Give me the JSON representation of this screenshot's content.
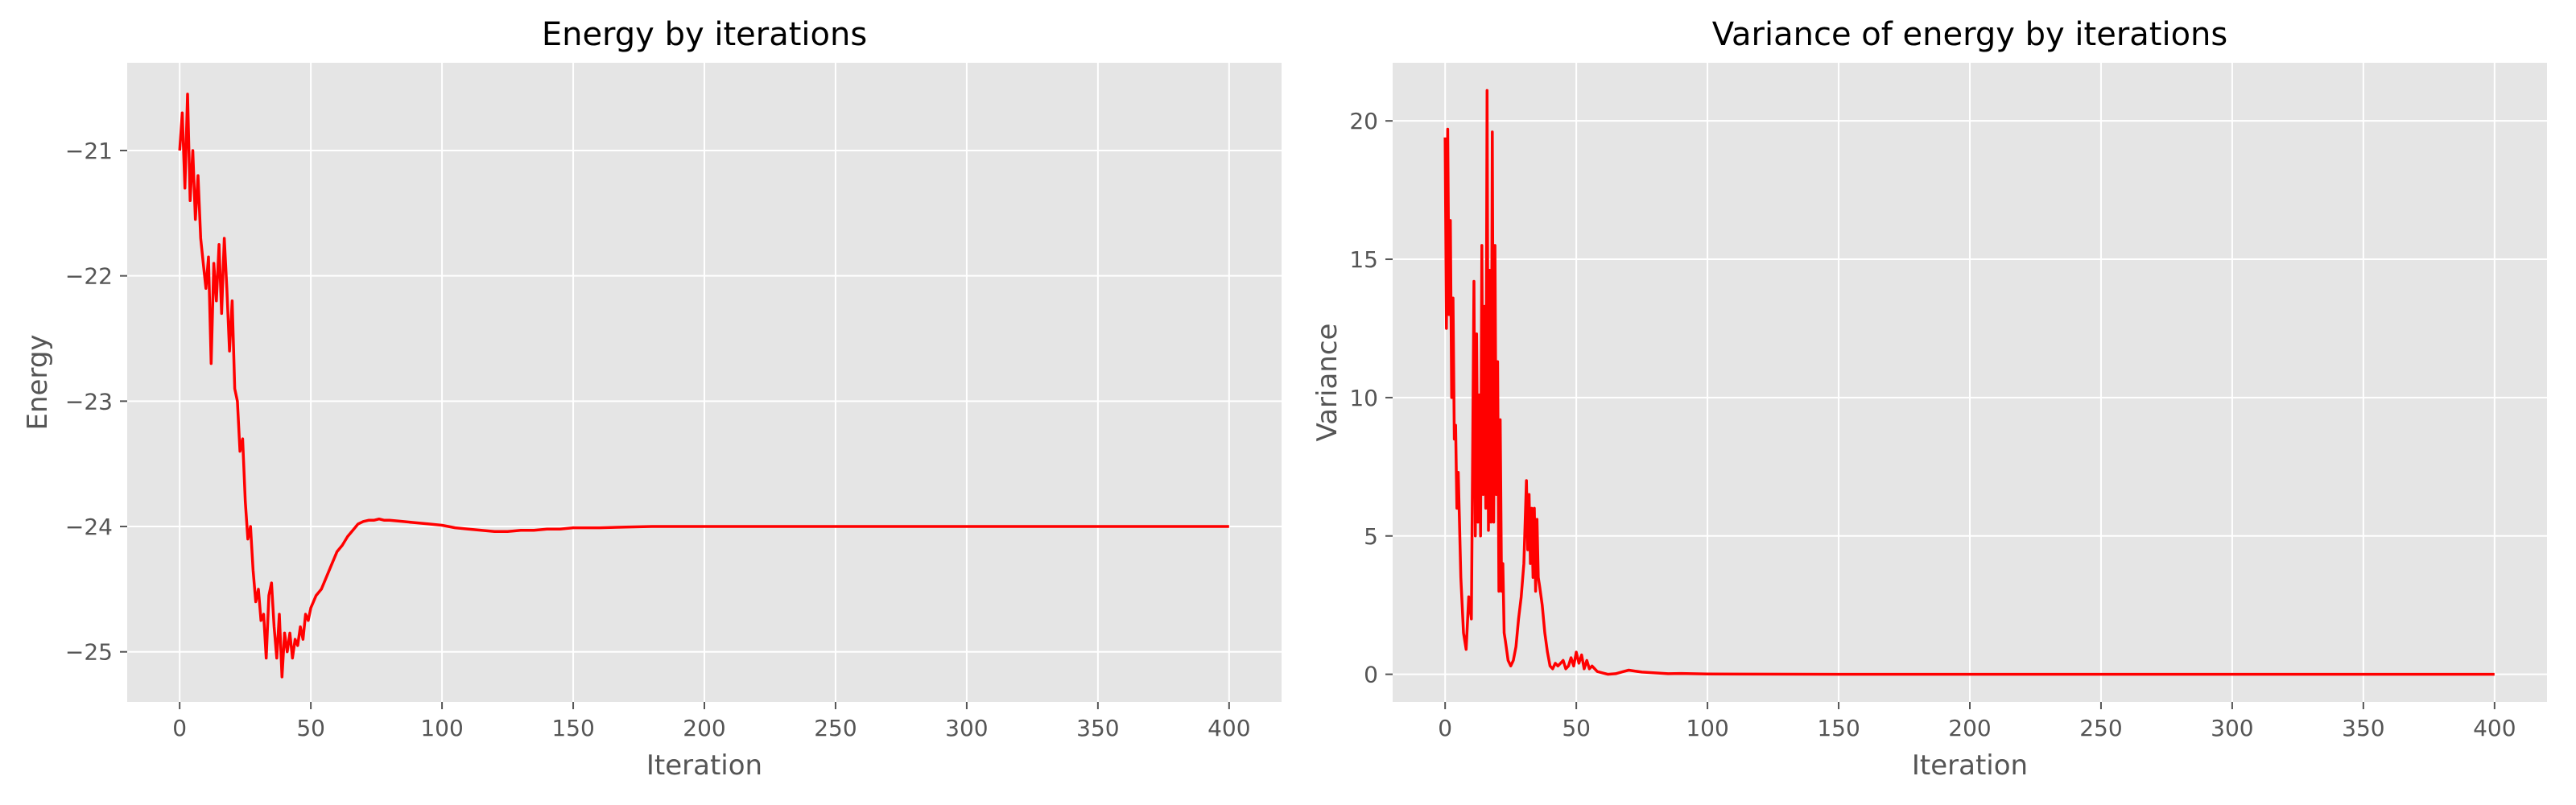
{
  "chart_data": [
    {
      "type": "line",
      "title": "Energy by iterations",
      "xlabel": "Iteration",
      "ylabel": "Energy",
      "xlim": [
        -20,
        420
      ],
      "ylim": [
        -25.4,
        -20.3
      ],
      "xticks": [
        0,
        50,
        100,
        150,
        200,
        250,
        300,
        350,
        400
      ],
      "xtick_labels": [
        "0",
        "50",
        "100",
        "150",
        "200",
        "250",
        "300",
        "350",
        "400"
      ],
      "yticks": [
        -25,
        -24,
        -23,
        -22,
        -21
      ],
      "ytick_labels": [
        "−25",
        "−24",
        "−23",
        "−22",
        "−21"
      ],
      "grid": true,
      "line_color": "#ff0000",
      "background_color": "#e5e5e5",
      "series": [
        {
          "x": [
            0,
            1,
            2,
            3,
            4,
            5,
            6,
            7,
            8,
            9,
            10,
            11,
            12,
            13,
            14,
            15,
            16,
            17,
            18,
            19,
            20,
            21,
            22,
            23,
            24,
            25,
            26,
            27,
            28,
            29,
            30,
            31,
            32,
            33,
            34,
            35,
            36,
            37,
            38,
            39,
            40,
            41,
            42,
            43,
            44,
            45,
            46,
            47,
            48,
            49,
            50,
            52,
            54,
            56,
            58,
            60,
            62,
            64,
            66,
            68,
            70,
            72,
            74,
            76,
            78,
            80,
            85,
            90,
            95,
            100,
            105,
            110,
            115,
            120,
            125,
            130,
            135,
            140,
            145,
            150,
            160,
            170,
            180,
            200,
            250,
            300,
            350,
            400
          ],
          "y": [
            -21.0,
            -20.7,
            -21.3,
            -20.55,
            -21.4,
            -21.0,
            -21.55,
            -21.2,
            -21.7,
            -21.9,
            -22.1,
            -21.85,
            -22.7,
            -21.9,
            -22.2,
            -21.75,
            -22.3,
            -21.7,
            -22.1,
            -22.6,
            -22.2,
            -22.9,
            -23.0,
            -23.4,
            -23.3,
            -23.8,
            -24.1,
            -24.0,
            -24.35,
            -24.6,
            -24.5,
            -24.75,
            -24.7,
            -25.05,
            -24.55,
            -24.45,
            -24.8,
            -25.05,
            -24.7,
            -25.2,
            -24.85,
            -25.0,
            -24.85,
            -25.05,
            -24.9,
            -24.95,
            -24.8,
            -24.9,
            -24.7,
            -24.75,
            -24.65,
            -24.55,
            -24.5,
            -24.4,
            -24.3,
            -24.2,
            -24.15,
            -24.08,
            -24.03,
            -23.98,
            -23.96,
            -23.95,
            -23.95,
            -23.94,
            -23.95,
            -23.95,
            -23.96,
            -23.97,
            -23.98,
            -23.99,
            -24.01,
            -24.02,
            -24.03,
            -24.04,
            -24.04,
            -24.03,
            -24.03,
            -24.02,
            -24.02,
            -24.01,
            -24.01,
            -24.005,
            -24.0,
            -24.0,
            -24.0,
            -24.0,
            -24.0,
            -24.0
          ]
        }
      ]
    },
    {
      "type": "line",
      "title": "Variance of energy by iterations",
      "xlabel": "Iteration",
      "ylabel": "Variance",
      "xlim": [
        -20,
        420
      ],
      "ylim": [
        -1.0,
        22.1
      ],
      "xticks": [
        0,
        50,
        100,
        150,
        200,
        250,
        300,
        350,
        400
      ],
      "xtick_labels": [
        "0",
        "50",
        "100",
        "150",
        "200",
        "250",
        "300",
        "350",
        "400"
      ],
      "yticks": [
        0,
        5,
        10,
        15,
        20
      ],
      "ytick_labels": [
        "0",
        "5",
        "10",
        "15",
        "20"
      ],
      "grid": true,
      "line_color": "#ff0000",
      "background_color": "#e5e5e5",
      "series": [
        {
          "x": [
            0,
            0.5,
            1,
            1.5,
            2,
            2.5,
            3,
            3.5,
            4,
            4.5,
            5,
            6,
            7,
            8,
            9,
            10,
            11,
            11.5,
            12,
            12.5,
            13,
            13.5,
            14,
            14.5,
            15,
            15.5,
            16,
            16.5,
            17,
            17.5,
            18,
            18.5,
            19,
            19.5,
            20,
            20.5,
            21,
            21.5,
            22,
            22.5,
            23,
            24,
            25,
            26,
            27,
            28,
            29,
            30,
            31,
            31.5,
            32,
            32.5,
            33,
            33.5,
            34,
            34.5,
            35,
            35.5,
            36,
            37,
            38,
            39,
            40,
            41,
            42,
            43,
            44,
            45,
            46,
            47,
            48,
            49,
            50,
            51,
            52,
            53,
            54,
            55,
            56,
            58,
            60,
            62,
            65,
            68,
            70,
            72,
            75,
            80,
            85,
            90,
            100,
            150,
            200,
            250,
            300,
            350,
            400
          ],
          "y": [
            19.4,
            12.5,
            19.7,
            13.0,
            16.4,
            10.0,
            13.6,
            8.5,
            9.0,
            6.0,
            7.3,
            3.5,
            1.5,
            0.9,
            2.8,
            2.0,
            14.2,
            5.0,
            12.3,
            5.5,
            10.1,
            5.0,
            15.5,
            6.5,
            13.3,
            6.0,
            21.1,
            5.2,
            14.6,
            5.5,
            19.6,
            5.5,
            15.5,
            6.5,
            11.3,
            3.0,
            9.2,
            3.0,
            4.0,
            1.5,
            1.2,
            0.5,
            0.3,
            0.5,
            1.0,
            2.0,
            2.8,
            4.0,
            7.0,
            4.5,
            6.5,
            4.0,
            6.0,
            3.5,
            6.0,
            3.0,
            5.6,
            3.5,
            3.2,
            2.5,
            1.5,
            0.8,
            0.3,
            0.2,
            0.4,
            0.3,
            0.4,
            0.5,
            0.2,
            0.3,
            0.6,
            0.3,
            0.8,
            0.4,
            0.7,
            0.2,
            0.5,
            0.2,
            0.3,
            0.1,
            0.05,
            0.0,
            0.02,
            0.1,
            0.15,
            0.12,
            0.08,
            0.05,
            0.02,
            0.03,
            0.01,
            0.0,
            0.0,
            0.0,
            0.0,
            0.0,
            0.0
          ]
        }
      ]
    }
  ]
}
